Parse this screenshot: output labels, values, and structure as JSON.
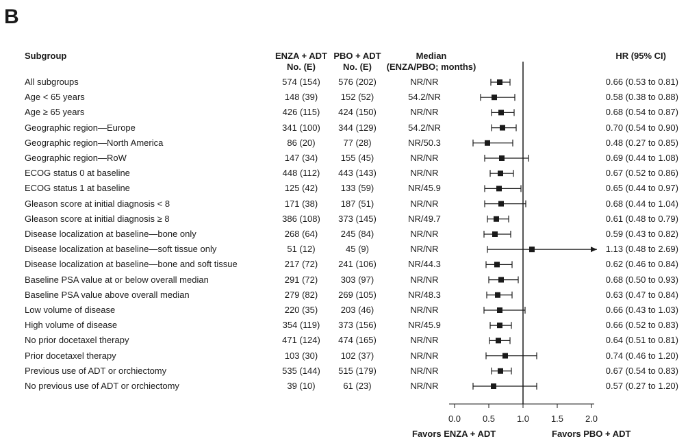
{
  "panel_label": "B",
  "headers": {
    "subgroup": "Subgroup",
    "enza_line1": "ENZA + ADT",
    "enza_line2": "No. (E)",
    "pbo_line1": "PBO + ADT",
    "pbo_line2": "No. (E)",
    "median_line1": "Median",
    "median_line2": "(ENZA/PBO; months)",
    "hr": "HR (95% CI)"
  },
  "favors_left": "Favors ENZA + ADT",
  "favors_right": "Favors PBO + ADT",
  "colors": {
    "text": "#1a1a1a",
    "marker": "#1a1a1a"
  },
  "chart_data": {
    "type": "forest",
    "reference_line": 1.0,
    "xlim": [
      0,
      2.0
    ],
    "xticks": [
      "0.0",
      "0.5",
      "1.0",
      "1.5",
      "2.0"
    ],
    "rows": [
      {
        "subgroup": "All subgroups",
        "enza": "574 (154)",
        "pbo": "576 (202)",
        "median": "NR/NR",
        "hr": 0.66,
        "lo": 0.53,
        "hi": 0.81,
        "hr_text": "0.66 (0.53 to 0.81)"
      },
      {
        "subgroup": "Age < 65 years",
        "enza": "148 (39)",
        "pbo": "152 (52)",
        "median": "54.2/NR",
        "hr": 0.58,
        "lo": 0.38,
        "hi": 0.88,
        "hr_text": "0.58 (0.38 to 0.88)"
      },
      {
        "subgroup": "Age ≥ 65 years",
        "enza": "426 (115)",
        "pbo": "424 (150)",
        "median": "NR/NR",
        "hr": 0.68,
        "lo": 0.54,
        "hi": 0.87,
        "hr_text": "0.68 (0.54 to 0.87)"
      },
      {
        "subgroup": "Geographic region—Europe",
        "enza": "341 (100)",
        "pbo": "344 (129)",
        "median": "54.2/NR",
        "hr": 0.7,
        "lo": 0.54,
        "hi": 0.9,
        "hr_text": "0.70 (0.54 to 0.90)"
      },
      {
        "subgroup": "Geographic region—North America",
        "enza": "86 (20)",
        "pbo": "77 (28)",
        "median": "NR/50.3",
        "hr": 0.48,
        "lo": 0.27,
        "hi": 0.85,
        "hr_text": "0.48 (0.27 to 0.85)"
      },
      {
        "subgroup": "Geographic region—RoW",
        "enza": "147 (34)",
        "pbo": "155 (45)",
        "median": "NR/NR",
        "hr": 0.69,
        "lo": 0.44,
        "hi": 1.08,
        "hr_text": "0.69 (0.44 to 1.08)"
      },
      {
        "subgroup": "ECOG status 0 at baseline",
        "enza": "448 (112)",
        "pbo": "443 (143)",
        "median": "NR/NR",
        "hr": 0.67,
        "lo": 0.52,
        "hi": 0.86,
        "hr_text": "0.67 (0.52 to 0.86)"
      },
      {
        "subgroup": "ECOG status 1 at baseline",
        "enza": "125 (42)",
        "pbo": "133 (59)",
        "median": "NR/45.9",
        "hr": 0.65,
        "lo": 0.44,
        "hi": 0.97,
        "hr_text": "0.65 (0.44 to 0.97)"
      },
      {
        "subgroup": "Gleason score at initial diagnosis < 8",
        "enza": "171 (38)",
        "pbo": "187 (51)",
        "median": "NR/NR",
        "hr": 0.68,
        "lo": 0.44,
        "hi": 1.04,
        "hr_text": "0.68 (0.44 to 1.04)"
      },
      {
        "subgroup": "Gleason score at initial diagnosis ≥ 8",
        "enza": "386 (108)",
        "pbo": "373 (145)",
        "median": "NR/49.7",
        "hr": 0.61,
        "lo": 0.48,
        "hi": 0.79,
        "hr_text": "0.61 (0.48 to 0.79)"
      },
      {
        "subgroup": "Disease localization at baseline—bone only",
        "enza": "268 (64)",
        "pbo": "245 (84)",
        "median": "NR/NR",
        "hr": 0.59,
        "lo": 0.43,
        "hi": 0.82,
        "hr_text": "0.59 (0.43 to 0.82)"
      },
      {
        "subgroup": "Disease localization at baseline—soft tissue only",
        "enza": "51 (12)",
        "pbo": "45 (9)",
        "median": "NR/NR",
        "hr": 1.13,
        "lo": 0.48,
        "hi": 2.69,
        "hr_text": "1.13 (0.48 to 2.69)"
      },
      {
        "subgroup": "Disease localization at baseline—bone and soft tissue",
        "enza": "217 (72)",
        "pbo": "241 (106)",
        "median": "NR/44.3",
        "hr": 0.62,
        "lo": 0.46,
        "hi": 0.84,
        "hr_text": "0.62 (0.46 to 0.84)"
      },
      {
        "subgroup": "Baseline PSA value at or below overall median",
        "enza": "291 (72)",
        "pbo": "303 (97)",
        "median": "NR/NR",
        "hr": 0.68,
        "lo": 0.5,
        "hi": 0.93,
        "hr_text": "0.68 (0.50 to 0.93)"
      },
      {
        "subgroup": "Baseline PSA value above overall median",
        "enza": "279 (82)",
        "pbo": "269 (105)",
        "median": "NR/48.3",
        "hr": 0.63,
        "lo": 0.47,
        "hi": 0.84,
        "hr_text": "0.63 (0.47 to 0.84)"
      },
      {
        "subgroup": "Low volume of disease",
        "enza": "220 (35)",
        "pbo": "203 (46)",
        "median": "NR/NR",
        "hr": 0.66,
        "lo": 0.43,
        "hi": 1.03,
        "hr_text": "0.66 (0.43 to 1.03)"
      },
      {
        "subgroup": "High volume of disease",
        "enza": "354 (119)",
        "pbo": "373 (156)",
        "median": "NR/45.9",
        "hr": 0.66,
        "lo": 0.52,
        "hi": 0.83,
        "hr_text": "0.66 (0.52 to 0.83)"
      },
      {
        "subgroup": "No prior docetaxel therapy",
        "enza": "471 (124)",
        "pbo": "474 (165)",
        "median": "NR/NR",
        "hr": 0.64,
        "lo": 0.51,
        "hi": 0.81,
        "hr_text": "0.64 (0.51 to 0.81)"
      },
      {
        "subgroup": "Prior docetaxel therapy",
        "enza": "103 (30)",
        "pbo": "102 (37)",
        "median": "NR/NR",
        "hr": 0.74,
        "lo": 0.46,
        "hi": 1.2,
        "hr_text": "0.74 (0.46 to 1.20)"
      },
      {
        "subgroup": "Previous use of ADT or orchiectomy",
        "enza": "535 (144)",
        "pbo": "515 (179)",
        "median": "NR/NR",
        "hr": 0.67,
        "lo": 0.54,
        "hi": 0.83,
        "hr_text": "0.67 (0.54 to 0.83)"
      },
      {
        "subgroup": "No previous use of ADT or orchiectomy",
        "enza": "39 (10)",
        "pbo": "61 (23)",
        "median": "NR/NR",
        "hr": 0.57,
        "lo": 0.27,
        "hi": 1.2,
        "hr_text": "0.57 (0.27 to 1.20)"
      }
    ]
  }
}
